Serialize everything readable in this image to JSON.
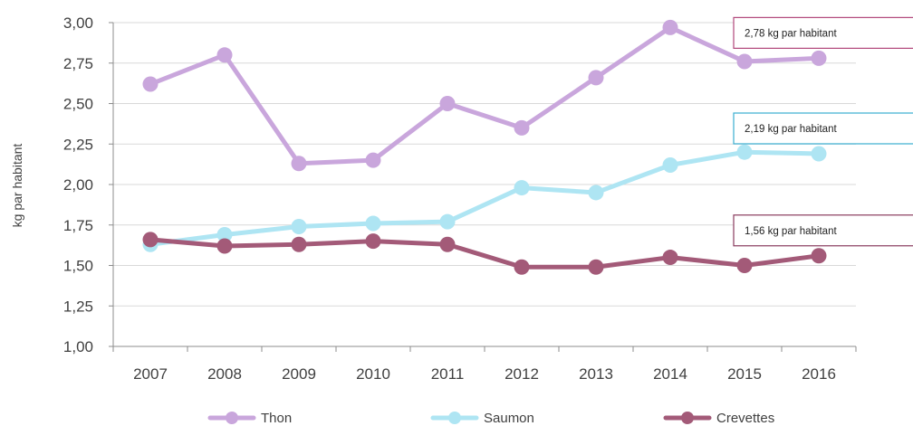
{
  "chart_data": {
    "type": "line",
    "ylabel": "kg par habitant",
    "xlabel": "",
    "ylim": [
      1.0,
      3.0
    ],
    "y_ticks": [
      "1,00",
      "1,25",
      "1,50",
      "1,75",
      "2,00",
      "2,25",
      "2,50",
      "2,75",
      "3,00"
    ],
    "y_tick_values": [
      1.0,
      1.25,
      1.5,
      1.75,
      2.0,
      2.25,
      2.5,
      2.75,
      3.0
    ],
    "categories": [
      "2007",
      "2008",
      "2009",
      "2010",
      "2011",
      "2012",
      "2013",
      "2014",
      "2015",
      "2016"
    ],
    "grid": true,
    "legend_position": "bottom",
    "series": [
      {
        "name": "Thon",
        "color": "#c9a6dc",
        "values": [
          2.62,
          2.8,
          2.13,
          2.15,
          2.5,
          2.35,
          2.66,
          2.97,
          2.76,
          2.78
        ]
      },
      {
        "name": "Saumon",
        "color": "#aee5f3",
        "values": [
          1.63,
          1.69,
          1.74,
          1.76,
          1.77,
          1.98,
          1.95,
          2.12,
          2.2,
          2.19
        ]
      },
      {
        "name": "Crevettes",
        "color": "#a35a78",
        "values": [
          1.66,
          1.62,
          1.63,
          1.65,
          1.63,
          1.49,
          1.49,
          1.55,
          1.5,
          1.56
        ]
      }
    ],
    "annotations": [
      {
        "series": "Thon",
        "text": "2,78 kg par habitant",
        "border_color": "#b0467a"
      },
      {
        "series": "Saumon",
        "text": "2,19 kg par habitant",
        "border_color": "#3aaed0"
      },
      {
        "series": "Crevettes",
        "text": "1,56 kg par habitant",
        "border_color": "#8a3b5e"
      }
    ]
  }
}
